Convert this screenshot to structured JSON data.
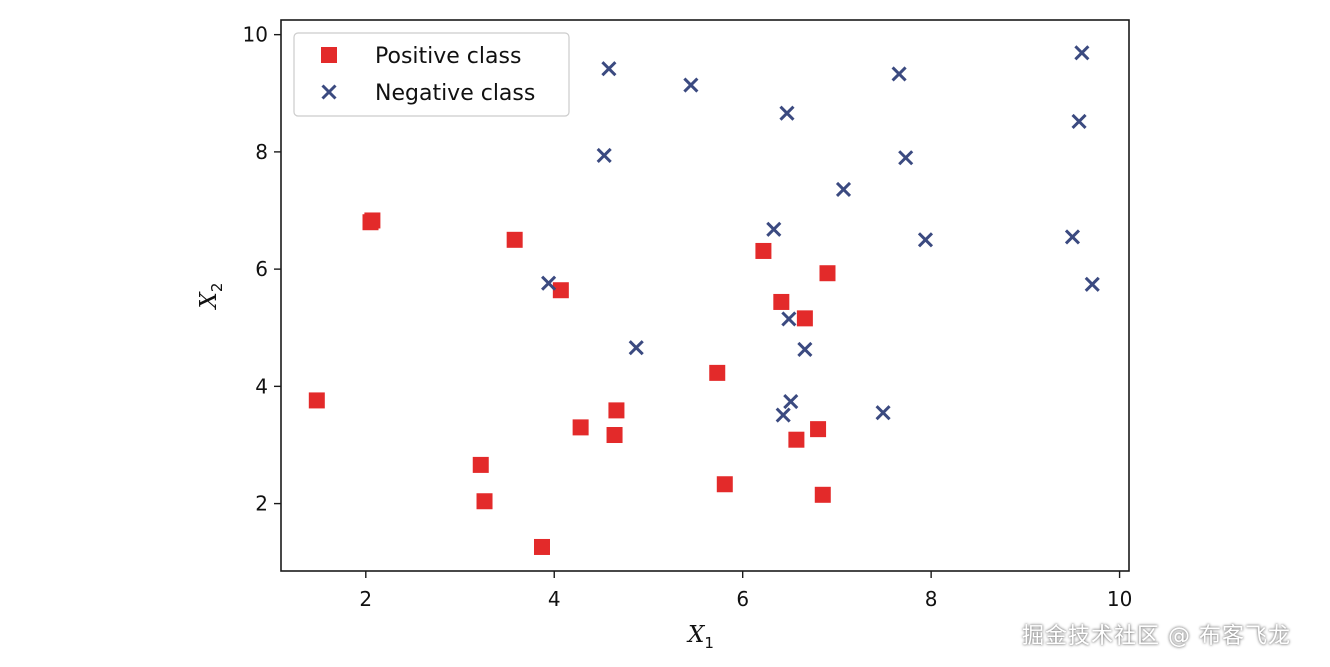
{
  "chart_data": {
    "type": "scatter",
    "title": "",
    "xlabel": "X",
    "xlabel_sub": "1",
    "ylabel": "X",
    "ylabel_sub": "2",
    "xlim": [
      1.1,
      10.1
    ],
    "ylim": [
      0.85,
      10.25
    ],
    "xticks": [
      2,
      4,
      6,
      8,
      10
    ],
    "yticks": [
      2,
      4,
      6,
      8,
      10
    ],
    "grid": false,
    "legend_position": "top-left",
    "series": [
      {
        "name": "Positive class",
        "marker": "square",
        "color": "#e32a2a",
        "points": [
          [
            1.48,
            3.76
          ],
          [
            2.05,
            6.8
          ],
          [
            2.07,
            6.83
          ],
          [
            3.22,
            2.66
          ],
          [
            3.26,
            2.04
          ],
          [
            3.58,
            6.5
          ],
          [
            3.87,
            1.26
          ],
          [
            4.07,
            5.64
          ],
          [
            4.28,
            3.3
          ],
          [
            4.64,
            3.17
          ],
          [
            4.66,
            3.59
          ],
          [
            5.73,
            4.23
          ],
          [
            5.81,
            2.33
          ],
          [
            6.22,
            6.31
          ],
          [
            6.41,
            5.44
          ],
          [
            6.57,
            3.09
          ],
          [
            6.66,
            5.16
          ],
          [
            6.8,
            3.27
          ],
          [
            6.85,
            2.15
          ],
          [
            6.9,
            5.93
          ]
        ]
      },
      {
        "name": "Negative class",
        "marker": "x",
        "color": "#3b4a80",
        "points": [
          [
            3.94,
            5.76
          ],
          [
            4.53,
            7.94
          ],
          [
            4.58,
            9.42
          ],
          [
            4.87,
            4.66
          ],
          [
            5.45,
            9.14
          ],
          [
            6.33,
            6.68
          ],
          [
            6.43,
            3.51
          ],
          [
            6.47,
            8.66
          ],
          [
            6.49,
            5.15
          ],
          [
            6.51,
            3.74
          ],
          [
            6.66,
            4.63
          ],
          [
            7.07,
            7.36
          ],
          [
            7.49,
            3.55
          ],
          [
            7.66,
            9.33
          ],
          [
            7.73,
            7.9
          ],
          [
            7.94,
            6.5
          ],
          [
            9.5,
            6.55
          ],
          [
            9.57,
            8.52
          ],
          [
            9.6,
            9.69
          ],
          [
            9.71,
            5.74
          ]
        ]
      }
    ]
  },
  "watermark": "掘金技术社区 @ 布客飞龙"
}
